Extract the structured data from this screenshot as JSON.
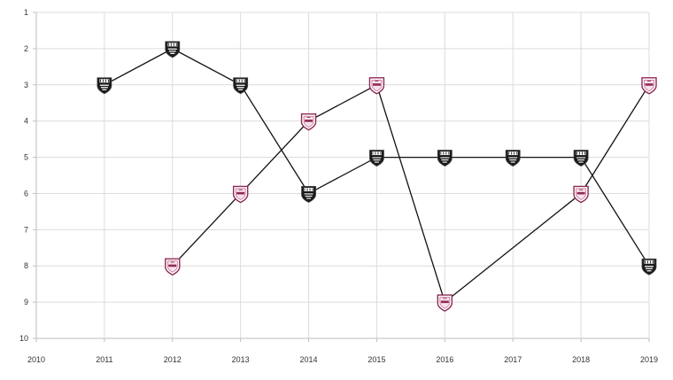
{
  "chart_data": {
    "type": "line",
    "title": "",
    "xlabel": "",
    "ylabel": "",
    "x": [
      2010,
      2011,
      2012,
      2013,
      2014,
      2015,
      2016,
      2017,
      2018,
      2019
    ],
    "x_tick_labels": [
      "2010",
      "2011",
      "2012",
      "2013",
      "2014",
      "2015",
      "2016",
      "2017",
      "2018",
      "2019"
    ],
    "y_tick_labels": [
      "1",
      "2",
      "3",
      "4",
      "5",
      "6",
      "7",
      "8",
      "9",
      "10"
    ],
    "xlim": [
      2010,
      2019
    ],
    "ylim": [
      1,
      10
    ],
    "y_inverted": true,
    "grid": true,
    "legend": "none",
    "series": [
      {
        "marker": "black-shield-icon",
        "color": "#111111",
        "points": [
          [
            2011,
            3
          ],
          [
            2012,
            2
          ],
          [
            2013,
            3
          ],
          [
            2014,
            6
          ],
          [
            2015,
            5
          ],
          [
            2016,
            5
          ],
          [
            2017,
            5
          ],
          [
            2018,
            5
          ],
          [
            2019,
            8
          ]
        ]
      },
      {
        "marker": "pink-shield-icon",
        "color": "#8e2a55",
        "points": [
          [
            2012,
            8
          ],
          [
            2013,
            6
          ],
          [
            2014,
            4
          ],
          [
            2015,
            3
          ],
          [
            2016,
            9
          ],
          [
            2018,
            6
          ],
          [
            2019,
            3
          ]
        ]
      }
    ]
  }
}
